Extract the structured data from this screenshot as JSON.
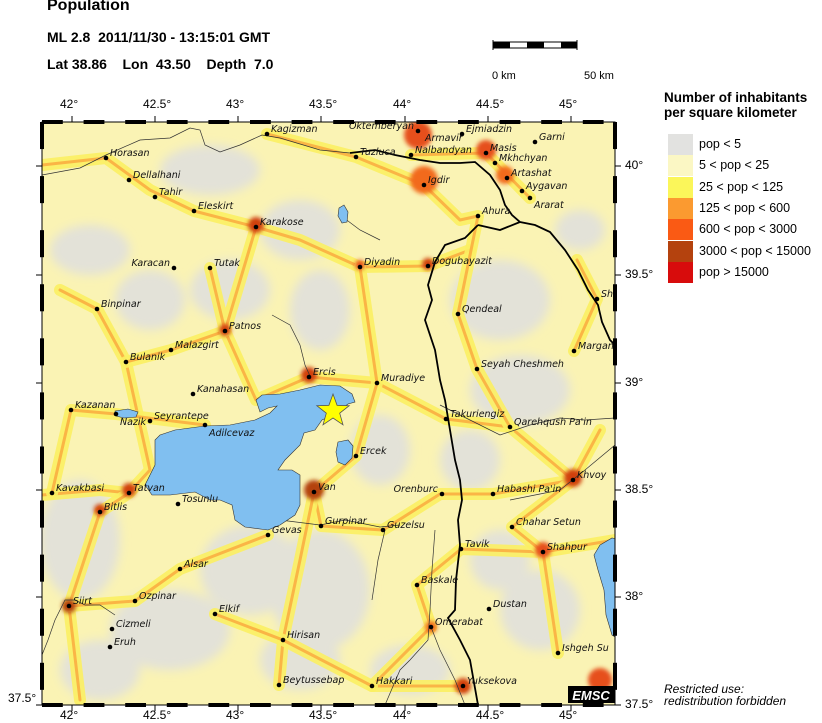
{
  "header": {
    "title": "Population",
    "event_line": "ML 2.8  2011/11/30 - 13:15:01 GMT",
    "location_line": "Lat 38.86    Lon  43.50    Depth  7.0"
  },
  "scale_bar": {
    "start_label": "0 km",
    "end_label": "50 km"
  },
  "axes": {
    "lon_ticks": [
      "42°",
      "42.5°",
      "43°",
      "43.5°",
      "44°",
      "44.5°",
      "45°"
    ],
    "lat_ticks": [
      "40°",
      "39.5°",
      "39°",
      "38.5°",
      "38°",
      "37.5°"
    ],
    "lat_left_label": "37.5°"
  },
  "legend": {
    "title_line1": "Number of inhabitants",
    "title_line2": "per square kilometer",
    "items": [
      {
        "label": "pop < 5",
        "color": "#e2e2e0"
      },
      {
        "label": "5 < pop < 25",
        "color": "#fbf7c4"
      },
      {
        "label": "25 < pop < 125",
        "color": "#fbf65a"
      },
      {
        "label": "125 < pop < 600",
        "color": "#fb9a30"
      },
      {
        "label": "600 < pop < 3000",
        "color": "#fa5a14"
      },
      {
        "label": "3000 < pop < 15000",
        "color": "#b4420e"
      },
      {
        "label": "pop > 15000",
        "color": "#d80c0c"
      }
    ]
  },
  "epicenter": {
    "lat": 38.86,
    "lon": 43.5,
    "color": "#ffff00"
  },
  "colors": {
    "water": "#80bff0",
    "border": "#000000"
  },
  "cities": [
    "Kagizman",
    "Horasan",
    "Dellalhani",
    "Tahir",
    "Eleskirt",
    "Karakose",
    "Tuzluca",
    "Oktemberyan",
    "Ejmiadzin",
    "Armavir",
    "Nalbandyan",
    "Garni",
    "Masis",
    "Mkhchyan",
    "Artashat",
    "Aygavan",
    "Ararat",
    "Igdir",
    "Ahura",
    "Dogubayazit",
    "Diyadin",
    "Karacan",
    "Tutak",
    "Binpinar",
    "Qendeal",
    "Sho",
    "Patnos",
    "Malazgirt",
    "Bulanik",
    "Margan",
    "Seyah Cheshmeh",
    "Ercis",
    "Muradiye",
    "Kanahasan",
    "Kazanan",
    "Nazik",
    "Seyrantepe",
    "Adilcevaz",
    "Takuriengiz",
    "Qarehqush Pa'in",
    "Ercek",
    "Khvoy",
    "Kavakbasi",
    "Tatvan",
    "Van",
    "Orenburc",
    "Habashi Pa'in",
    "Bitlis",
    "Tosunlu",
    "Gurpinar",
    "Guzelsu",
    "Gevas",
    "Chahar Setun",
    "Tavik",
    "Shahpur",
    "Alsar",
    "Baskale",
    "Ozpinar",
    "Siirt",
    "Dustan",
    "Elkif",
    "Cizmeli",
    "Omerabat",
    "Hirisan",
    "Eruh",
    "Ishgeh Su",
    "Beytussebap",
    "Hakkari",
    "Yuksekova"
  ],
  "logo": "EMSC",
  "footer": {
    "line1": "Restricted use:",
    "line2": "redistribution forbidden"
  }
}
